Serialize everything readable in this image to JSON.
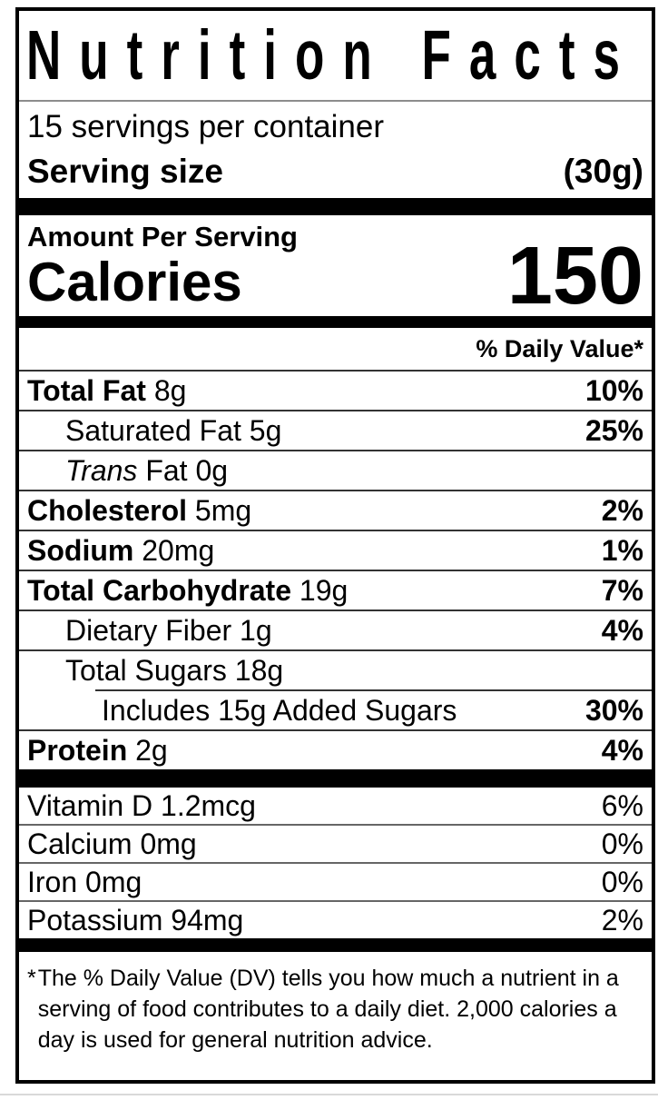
{
  "label": {
    "title": "Nutrition Facts",
    "servings_per_container": "15 servings per container",
    "serving_size_label": "Serving size",
    "serving_size_value": "(30g)",
    "amount_per_serving": "Amount Per Serving",
    "calories_label": "Calories",
    "calories_value": "150",
    "daily_value_header": "% Daily Value*",
    "nutrients": [
      {
        "name": "Total Fat",
        "amount": "8g",
        "dv": "10%"
      },
      {
        "name": "Saturated Fat",
        "amount": "5g",
        "dv": "25%"
      },
      {
        "name": "Trans",
        "amount": "Fat 0g",
        "dv": ""
      },
      {
        "name": "Cholesterol",
        "amount": "5mg",
        "dv": "2%"
      },
      {
        "name": "Sodium",
        "amount": "20mg",
        "dv": "1%"
      },
      {
        "name": "Total Carbohydrate",
        "amount": "19g",
        "dv": "7%"
      },
      {
        "name": "Dietary Fiber",
        "amount": "1g",
        "dv": "4%"
      },
      {
        "name": "Total Sugars",
        "amount": "18g",
        "dv": ""
      },
      {
        "name": "Includes 15g Added Sugars",
        "amount": "",
        "dv": "30%"
      },
      {
        "name": "Protein",
        "amount": "2g",
        "dv": "4%"
      }
    ],
    "micronutrients": [
      {
        "name": "Vitamin D",
        "amount": "1.2mcg",
        "dv": "6%"
      },
      {
        "name": "Calcium",
        "amount": "0mg",
        "dv": "0%"
      },
      {
        "name": "Iron",
        "amount": "0mg",
        "dv": "0%"
      },
      {
        "name": "Potassium",
        "amount": "94mg",
        "dv": "2%"
      }
    ],
    "footnote_marker": "*",
    "footnote_lines": [
      "The % Daily Value (DV) tells you how much a nutrient in a",
      "serving of food contributes to a daily diet. 2,000 calories a",
      "day is used for general nutrition advice."
    ]
  },
  "colors": {
    "text": "#000000",
    "background": "#ffffff",
    "thick_rule": "#000000",
    "hairline": "#333333",
    "light_hairline": "#8c8c8c"
  }
}
